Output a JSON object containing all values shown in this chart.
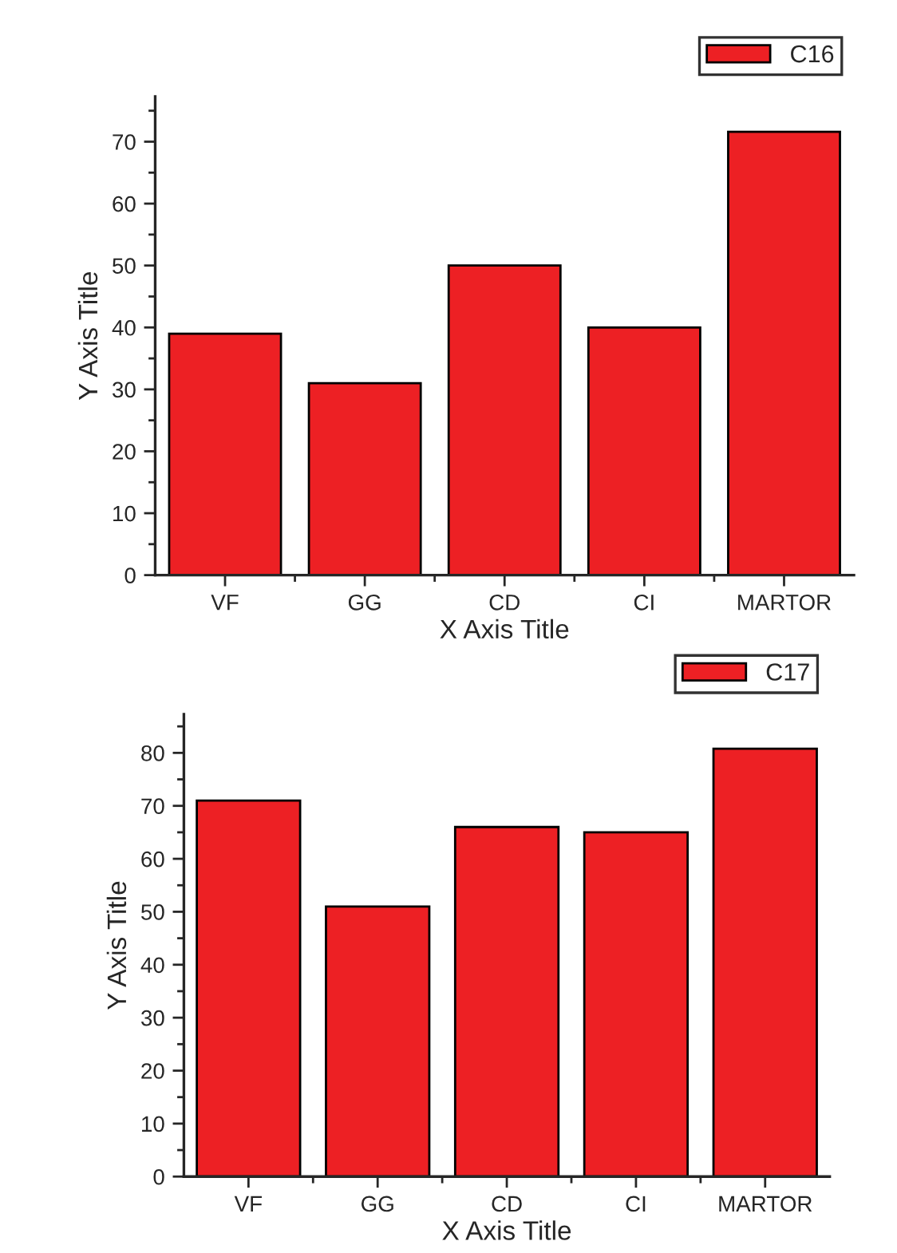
{
  "chart_data": [
    {
      "type": "bar",
      "categories": [
        "VF",
        "GG",
        "CD",
        "CI",
        "MARTOR"
      ],
      "xlabel": "X Axis Title",
      "ylabel": "Y Axis Title",
      "ylim": [
        0,
        77.3
      ],
      "yticks": [
        0,
        10,
        20,
        30,
        40,
        50,
        60,
        70
      ],
      "legend": "top right",
      "grid": false,
      "series": [
        {
          "name": "C16",
          "color": "#ed2024",
          "values": [
            39,
            31,
            50,
            40,
            71.6
          ]
        }
      ]
    },
    {
      "type": "bar",
      "categories": [
        "VF",
        "GG",
        "CD",
        "CI",
        "MARTOR"
      ],
      "xlabel": "X Axis Title",
      "ylabel": "Y Axis Title",
      "ylim": [
        0,
        87.3
      ],
      "yticks": [
        0,
        10,
        20,
        30,
        40,
        50,
        60,
        70,
        80
      ],
      "legend": "top right",
      "grid": false,
      "series": [
        {
          "name": "C17",
          "color": "#ed2024",
          "values": [
            71,
            51,
            66,
            65,
            80.8
          ]
        }
      ]
    }
  ]
}
